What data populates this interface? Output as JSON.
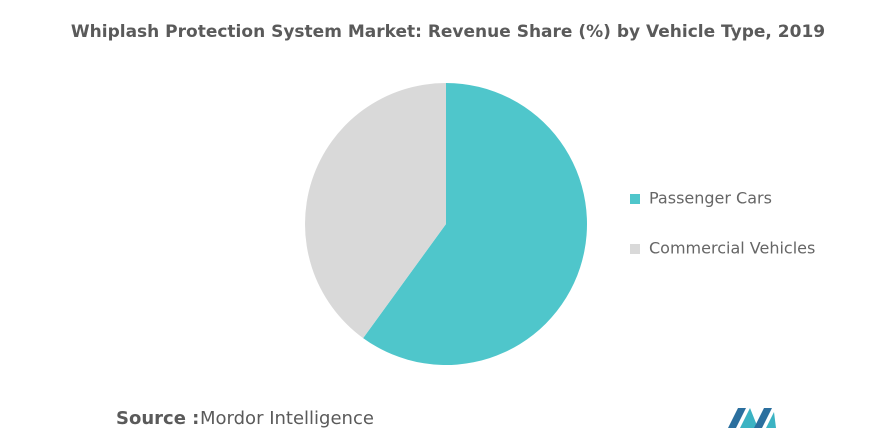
{
  "chart_data": {
    "type": "pie",
    "title": "Whiplash Protection System Market: Revenue Share (%) by Vehicle Type, 2019",
    "categories": [
      "Passenger Cars",
      "Commercial Vehicles"
    ],
    "values": [
      60,
      40
    ],
    "colors": [
      "#4fc6cb",
      "#d9d9d9"
    ],
    "legend": "right",
    "source": {
      "label": "Source :",
      "text": "Mordor Intelligence"
    }
  }
}
